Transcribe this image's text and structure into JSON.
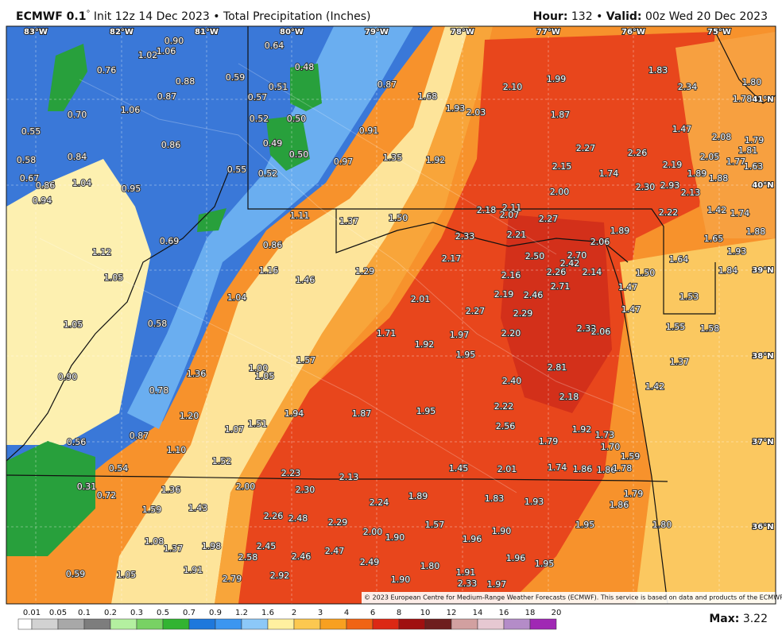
{
  "header": {
    "model": "ECMWF 0.1",
    "degree": "°",
    "info": "Init 12z 14 Dec 2023 • Total Precipitation (Inches)",
    "hour_label": "Hour:",
    "hour": "132",
    "separator": "•",
    "valid_label": "Valid:",
    "valid": "00z Wed 20 Dec 2023"
  },
  "map": {
    "longitudes": [
      "83°W",
      "82°W",
      "81°W",
      "80°W",
      "79°W",
      "78°W",
      "77°W",
      "76°W",
      "75°W"
    ],
    "latitudes": [
      "41°N",
      "40°N",
      "39°N",
      "38°N",
      "37°N",
      "36°N"
    ],
    "labels": [
      "0.90",
      "1.02",
      "1.06",
      "0.76",
      "0.88",
      "0.59",
      "0.64",
      "0.48",
      "0.87",
      "1.68",
      "2.10",
      "1.99",
      "1.83",
      "2.34",
      "1.80",
      "1.78",
      "1.06",
      "0.87",
      "0.70",
      "0.51",
      "0.57",
      "0.52",
      "0.50",
      "1.93",
      "2.03",
      "1.87",
      "1.47",
      "0.55",
      "0.86",
      "0.91",
      "0.49",
      "0.50",
      "2.08",
      "1.79",
      "0.58",
      "0.84",
      "0.55",
      "0.97",
      "1.35",
      "1.92",
      "2.27",
      "2.26",
      "2.05",
      "1.81",
      "2.15",
      "1.74",
      "2.19",
      "1.89",
      "1.77",
      "1.63",
      "1.88",
      "0.52",
      "0.67",
      "0.86",
      "1.04",
      "0.95",
      "2.30",
      "2.93",
      "2.13",
      "2.00",
      "0.94",
      "2.18",
      "2.11",
      "2.07",
      "2.27",
      "1.11",
      "1.37",
      "1.50",
      "2.22",
      "1.42",
      "1.74",
      "1.89",
      "1.65",
      "1.88",
      "2.33",
      "2.21",
      "2.06",
      "0.69",
      "0.86",
      "1.12",
      "2.17",
      "2.50",
      "2.70",
      "2.42",
      "1.64",
      "1.93",
      "1.84",
      "1.16",
      "1.29",
      "2.26",
      "2.14",
      "1.50",
      "1.05",
      "1.46",
      "2.16",
      "2.71",
      "1.47",
      "1.04",
      "2.01",
      "2.19",
      "2.46",
      "1.53",
      "1.47",
      "2.27",
      "2.29",
      "1.05",
      "0.58",
      "1.55",
      "1.58",
      "2.33",
      "2.06",
      "1.71",
      "1.97",
      "2.20",
      "1.92",
      "1.57",
      "1.95",
      "1.37",
      "2.81",
      "1.00",
      "1.05",
      "1.36",
      "0.90",
      "2.40",
      "1.42",
      "0.78",
      "2.18",
      "1.20",
      "1.94",
      "1.87",
      "1.95",
      "2.22",
      "1.07",
      "1.51",
      "2.56",
      "1.92",
      "1.73",
      "0.87",
      "0.56",
      "1.79",
      "1.70",
      "1.10",
      "1.59",
      "1.52",
      "0.54",
      "1.45",
      "2.01",
      "1.74",
      "1.86",
      "1.86",
      "1.78",
      "2.23",
      "2.13",
      "0.31",
      "1.36",
      "2.00",
      "2.30",
      "0.72",
      "1.89",
      "1.83",
      "2.24",
      "1.93",
      "1.79",
      "1.86",
      "1.59",
      "1.43",
      "2.26",
      "2.48",
      "2.29",
      "1.57",
      "1.95",
      "1.80",
      "2.00",
      "1.90",
      "1.90",
      "1.96",
      "1.08",
      "1.37",
      "1.98",
      "2.45",
      "2.58",
      "2.46",
      "2.47",
      "1.96",
      "1.95",
      "2.49",
      "1.80",
      "0.59",
      "1.05",
      "1.91",
      "2.79",
      "2.92",
      "1.91",
      "1.90",
      "2.33",
      "1.97"
    ],
    "copyright": "© 2023 European Centre for Medium-Range Weather Forecasts (ECMWF). This service is based on data and products of the ECMWF."
  },
  "legend": {
    "ticks": [
      0.01,
      0.05,
      0.1,
      0.2,
      0.3,
      0.5,
      0.7,
      0.9,
      1.2,
      1.6,
      2,
      3,
      4,
      6,
      8,
      10,
      12,
      14,
      16,
      18,
      20
    ],
    "colors": [
      "#ffffff",
      "#d2d2d2",
      "#a8a8a8",
      "#7d7d7d",
      "#b4f0a0",
      "#78d264",
      "#32b432",
      "#1e78dc",
      "#3c96f0",
      "#8cc8f8",
      "#fff0a0",
      "#fcc850",
      "#f8a020",
      "#f06414",
      "#dc2814",
      "#a01010",
      "#6e1e1e",
      "#d2a0a0",
      "#e6c8d2",
      "#b48cc8",
      "#a028b4",
      "#d21ed2"
    ],
    "max_label": "Max:",
    "max": "3.22"
  }
}
